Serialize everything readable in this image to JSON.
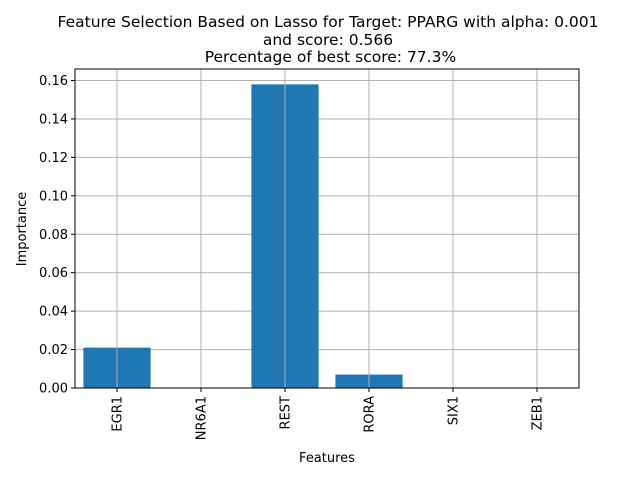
{
  "chart_data": {
    "type": "bar",
    "title_lines": [
      "Feature Selection Based on Lasso for Target: PPARG with alpha: 0.001",
      "and score: 0.566",
      " Percentage of best score: 77.3%"
    ],
    "xlabel": "Features",
    "ylabel": "Importance",
    "categories": [
      "EGR1",
      "NR6A1",
      "REST",
      "RORA",
      "SIX1",
      "ZEB1"
    ],
    "values": [
      0.021,
      0.0,
      0.158,
      0.007,
      0.0,
      0.0
    ],
    "ylim": [
      0,
      0.166
    ],
    "yticks": [
      "0.00",
      "0.02",
      "0.04",
      "0.06",
      "0.08",
      "0.10",
      "0.12",
      "0.14",
      "0.16"
    ],
    "grid": true,
    "bar_color": "#1f77b4",
    "grid_color": "#b0b0b0"
  }
}
